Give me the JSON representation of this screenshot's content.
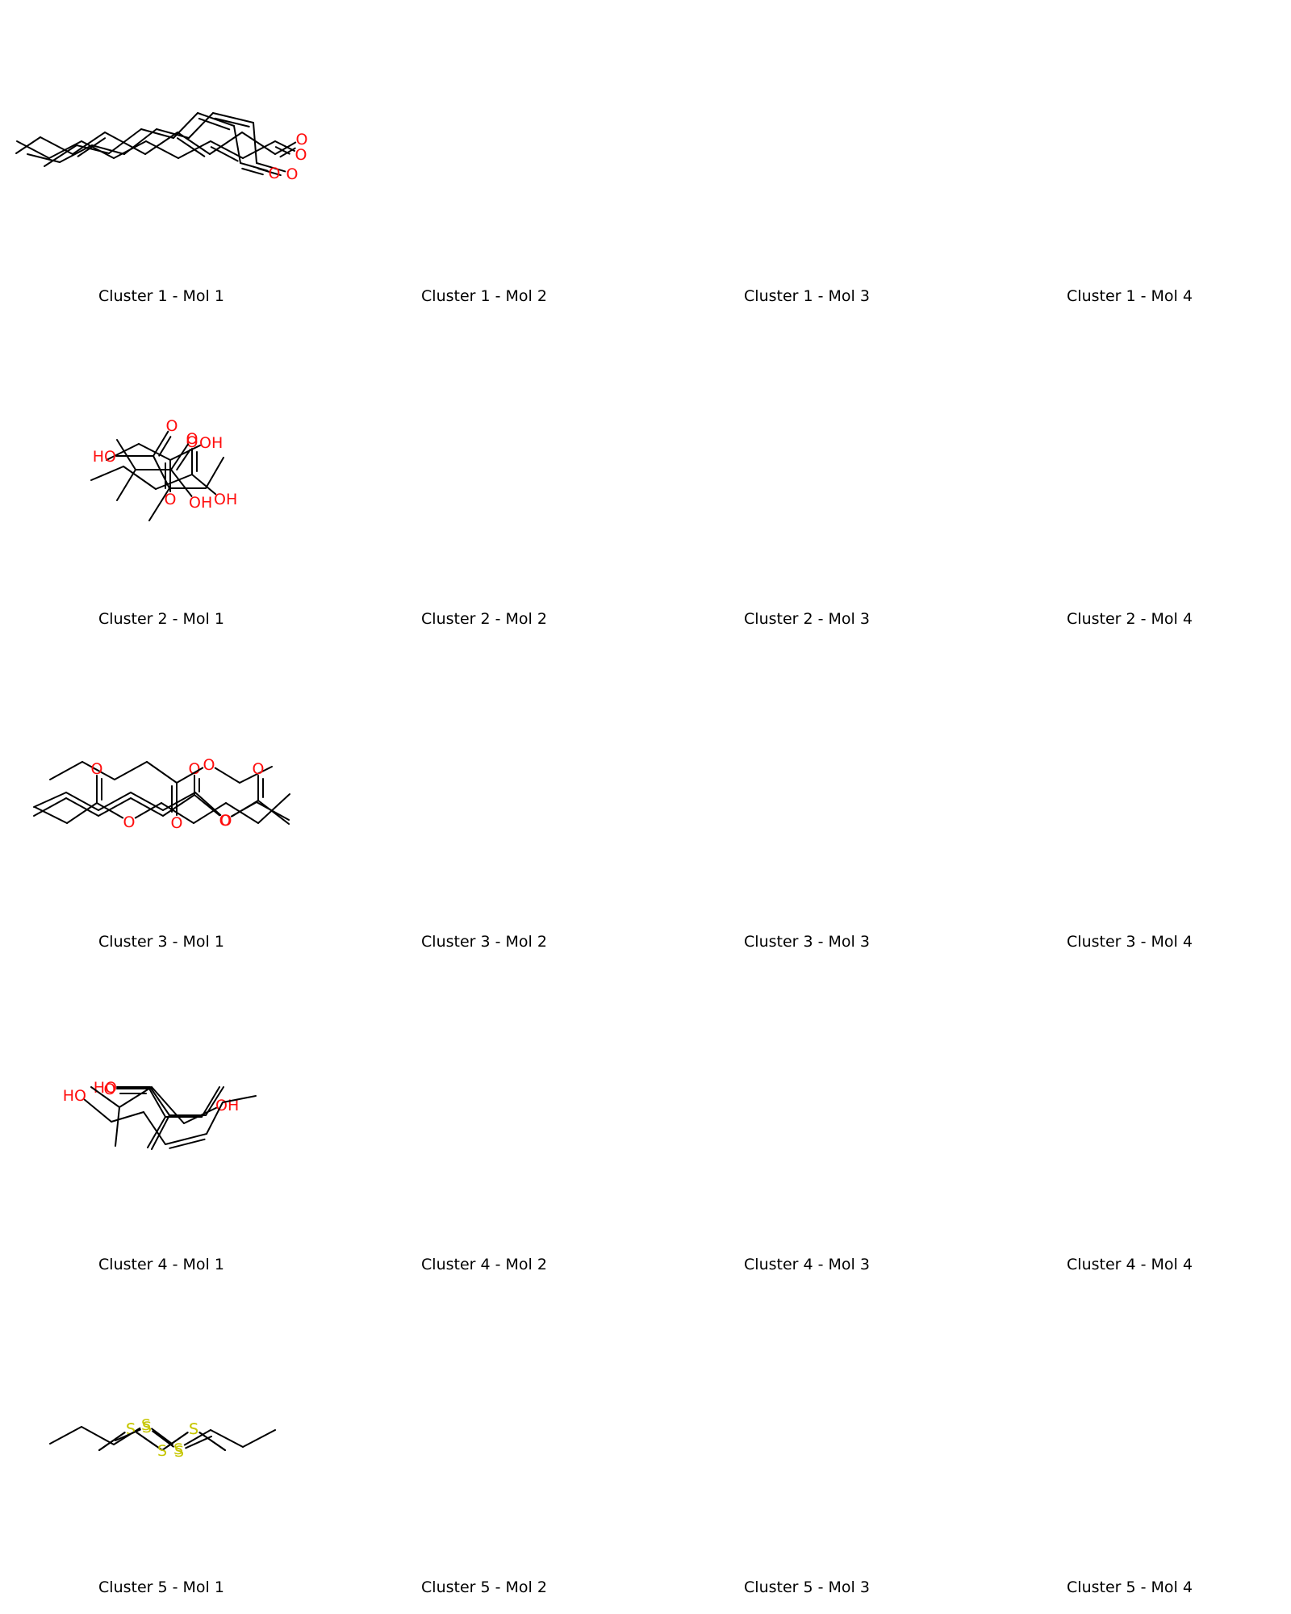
{
  "colors": {
    "carbon": "#000000",
    "O": "#ff0d0d",
    "S": "#c6c600",
    "background": "#ffffff"
  },
  "molecules": [
    {
      "label": "Cluster 1 - Mol 1",
      "atoms": [
        [
          "C",
          21,
          175
        ],
        [
          "C",
          61,
          196
        ],
        [
          "C",
          101,
          175
        ],
        [
          "C",
          141,
          196
        ],
        [
          "C",
          181,
          175
        ],
        [
          "C",
          221,
          196
        ],
        [
          "C",
          261,
          175
        ],
        [
          "C",
          301,
          196
        ],
        [
          "C",
          341,
          175
        ],
        [
          "O",
          373,
          191
        ]
      ],
      "bonds": [
        [
          0,
          1,
          1
        ],
        [
          1,
          2,
          1
        ],
        [
          2,
          3,
          1
        ],
        [
          3,
          4,
          1
        ],
        [
          4,
          5,
          1
        ],
        [
          5,
          6,
          1
        ],
        [
          6,
          7,
          2
        ],
        [
          7,
          8,
          1
        ],
        [
          8,
          9,
          2
        ]
      ]
    },
    {
      "label": "Cluster 1 - Mol 2",
      "atoms": [
        [
          "C",
          34,
          191
        ],
        [
          "C",
          74,
          201
        ],
        [
          "C",
          114,
          180
        ],
        [
          "C",
          154,
          191
        ],
        [
          "C",
          194,
          160
        ],
        [
          "C",
          234,
          171
        ],
        [
          "C",
          264,
          140
        ],
        [
          "C",
          314,
          152
        ],
        [
          "C",
          318,
          202
        ],
        [
          "O",
          362,
          215
        ]
      ],
      "bonds": [
        [
          0,
          1,
          1
        ],
        [
          1,
          2,
          1
        ],
        [
          2,
          3,
          1
        ],
        [
          3,
          4,
          1
        ],
        [
          4,
          5,
          1
        ],
        [
          5,
          6,
          1
        ],
        [
          6,
          7,
          2
        ],
        [
          7,
          8,
          1
        ],
        [
          8,
          9,
          2
        ]
      ]
    },
    {
      "label": "Cluster 1 - Mol 3",
      "atoms": [
        [
          "C",
          55,
          206
        ],
        [
          "C",
          95,
          180
        ],
        [
          "C",
          135,
          190
        ],
        [
          "C",
          175,
          160
        ],
        [
          "C",
          215,
          171
        ],
        [
          "C",
          245,
          140
        ],
        [
          "C",
          290,
          156
        ],
        [
          "C",
          298,
          202
        ],
        [
          "O",
          340,
          214
        ]
      ],
      "bonds": [
        [
          0,
          1,
          1
        ],
        [
          1,
          2,
          1
        ],
        [
          2,
          3,
          1
        ],
        [
          3,
          4,
          1
        ],
        [
          4,
          5,
          1
        ],
        [
          5,
          6,
          2
        ],
        [
          6,
          7,
          1
        ],
        [
          7,
          8,
          2
        ]
      ]
    },
    {
      "label": "Cluster 1 - Mol 4",
      "atoms": [
        [
          "C",
          20,
          190
        ],
        [
          "C",
          50,
          170
        ],
        [
          "C",
          90,
          191
        ],
        [
          "C",
          130,
          164
        ],
        [
          "C",
          180,
          191
        ],
        [
          "C",
          220,
          164
        ],
        [
          "C",
          260,
          191
        ],
        [
          "C",
          300,
          164
        ],
        [
          "C",
          341,
          191
        ],
        [
          "O",
          374,
          172
        ]
      ],
      "bonds": [
        [
          0,
          1,
          1
        ],
        [
          1,
          2,
          1
        ],
        [
          2,
          3,
          2
        ],
        [
          3,
          4,
          1
        ],
        [
          4,
          5,
          1
        ],
        [
          5,
          6,
          2
        ],
        [
          6,
          7,
          1
        ],
        [
          7,
          8,
          1
        ],
        [
          8,
          9,
          2
        ]
      ]
    },
    {
      "label": "Cluster 2 - Mol 1",
      "atoms": [
        [
          "C",
          132,
          570
        ],
        [
          "C",
          172,
          550
        ],
        [
          "C",
          211,
          570
        ],
        [
          "O",
          211,
          618
        ],
        [
          "O",
          256,
          548
        ]
      ],
      "bonds": [
        [
          0,
          1,
          1
        ],
        [
          1,
          2,
          1
        ],
        [
          2,
          3,
          2
        ],
        [
          2,
          4,
          1
        ]
      ]
    },
    {
      "label": "Cluster 2 - Mol 2",
      "atoms": [
        [
          "C",
          113,
          595
        ],
        [
          "C",
          153,
          578
        ],
        [
          "C",
          193,
          606
        ],
        [
          "C",
          238,
          588
        ],
        [
          "O",
          238,
          547
        ],
        [
          "O",
          274,
          618
        ]
      ],
      "bonds": [
        [
          0,
          1,
          1
        ],
        [
          1,
          2,
          1
        ],
        [
          2,
          3,
          1
        ],
        [
          3,
          4,
          2
        ],
        [
          3,
          5,
          1
        ]
      ]
    },
    {
      "label": "Cluster 2 - Mol 3",
      "atoms": [
        [
          "C",
          145,
          545
        ],
        [
          "C",
          168,
          582
        ],
        [
          "C",
          145,
          620
        ],
        [
          "C",
          212,
          582
        ],
        [
          "O",
          238,
          543
        ],
        [
          "O",
          243,
          622
        ]
      ],
      "bonds": [
        [
          0,
          1,
          1
        ],
        [
          1,
          2,
          1
        ],
        [
          1,
          3,
          1
        ],
        [
          3,
          4,
          2
        ],
        [
          3,
          5,
          1
        ]
      ]
    },
    {
      "label": "Cluster 2 - Mol 4",
      "atoms": [
        [
          "O",
          135,
          565
        ],
        [
          "C",
          190,
          565
        ],
        [
          "O",
          213,
          527
        ],
        [
          "C",
          210,
          605
        ],
        [
          "C",
          255,
          605
        ],
        [
          "C",
          277,
          567
        ],
        [
          "C",
          185,
          645
        ]
      ],
      "bonds": [
        [
          0,
          1,
          1
        ],
        [
          1,
          2,
          2
        ],
        [
          1,
          3,
          1
        ],
        [
          3,
          4,
          1
        ],
        [
          4,
          5,
          1
        ],
        [
          3,
          6,
          1
        ]
      ]
    },
    {
      "label": "Cluster 3 - Mol 1",
      "atoms": [
        [
          "C",
          42,
          1011
        ],
        [
          "C",
          82,
          989
        ],
        [
          "C",
          122,
          1011
        ],
        [
          "C",
          162,
          989
        ],
        [
          "C",
          202,
          1011
        ],
        [
          "C",
          241,
          985
        ],
        [
          "O",
          241,
          952
        ],
        [
          "O",
          279,
          1016
        ],
        [
          "C",
          318,
          994
        ],
        [
          "C",
          358,
          1016
        ]
      ],
      "bonds": [
        [
          0,
          1,
          1
        ],
        [
          1,
          2,
          1
        ],
        [
          2,
          3,
          1
        ],
        [
          3,
          4,
          1
        ],
        [
          4,
          5,
          1
        ],
        [
          5,
          6,
          2
        ],
        [
          5,
          7,
          1
        ],
        [
          7,
          8,
          1
        ],
        [
          8,
          9,
          1
        ]
      ]
    },
    {
      "label": "Cluster 3 - Mol 2",
      "atoms": [
        [
          "C",
          62,
          966
        ],
        [
          "C",
          102,
          944
        ],
        [
          "C",
          142,
          966
        ],
        [
          "C",
          182,
          944
        ],
        [
          "C",
          219,
          970
        ],
        [
          "O",
          219,
          1019
        ],
        [
          "O",
          259,
          947
        ],
        [
          "C",
          297,
          970
        ],
        [
          "C",
          337,
          950
        ]
      ],
      "bonds": [
        [
          0,
          1,
          1
        ],
        [
          1,
          2,
          1
        ],
        [
          2,
          3,
          1
        ],
        [
          3,
          4,
          1
        ],
        [
          4,
          5,
          2
        ],
        [
          4,
          6,
          1
        ],
        [
          6,
          7,
          1
        ],
        [
          7,
          8,
          1
        ]
      ]
    },
    {
      "label": "Cluster 3 - Mol 3",
      "atoms": [
        [
          "C",
          43,
          1000
        ],
        [
          "C",
          83,
          1020
        ],
        [
          "C",
          120,
          995
        ],
        [
          "O",
          120,
          952
        ],
        [
          "O",
          160,
          1018
        ],
        [
          "C",
          200,
          995
        ],
        [
          "C",
          240,
          1020
        ],
        [
          "C",
          280,
          995
        ],
        [
          "C",
          320,
          1020
        ],
        [
          "C",
          359,
          984
        ]
      ],
      "bonds": [
        [
          0,
          1,
          1
        ],
        [
          1,
          2,
          1
        ],
        [
          2,
          3,
          2
        ],
        [
          2,
          4,
          1
        ],
        [
          4,
          5,
          1
        ],
        [
          5,
          6,
          1
        ],
        [
          6,
          7,
          1
        ],
        [
          7,
          8,
          1
        ],
        [
          8,
          9,
          1
        ]
      ]
    },
    {
      "label": "Cluster 3 - Mol 4",
      "atoms": [
        [
          "C",
          42,
          1000
        ],
        [
          "C",
          82,
          982
        ],
        [
          "C",
          122,
          1004
        ],
        [
          "C",
          162,
          982
        ],
        [
          "C",
          202,
          1004
        ],
        [
          "C",
          242,
          982
        ],
        [
          "O",
          280,
          1016
        ],
        [
          "C",
          320,
          992
        ],
        [
          "O",
          320,
          952
        ],
        [
          "C",
          358,
          1021
        ]
      ],
      "bonds": [
        [
          0,
          1,
          1
        ],
        [
          1,
          2,
          1
        ],
        [
          2,
          3,
          1
        ],
        [
          3,
          4,
          1
        ],
        [
          4,
          5,
          1
        ],
        [
          5,
          6,
          1
        ],
        [
          6,
          7,
          1
        ],
        [
          7,
          8,
          2
        ],
        [
          7,
          9,
          1
        ]
      ]
    },
    {
      "label": "Cluster 4 - Mol 1",
      "atoms": [
        [
          "O",
          136,
          1347
        ],
        [
          "C",
          186,
          1347
        ],
        [
          "C",
          210,
          1382
        ],
        [
          "C",
          255,
          1382
        ],
        [
          "C",
          277,
          1347
        ],
        [
          "C",
          188,
          1424
        ]
      ],
      "bonds": [
        [
          0,
          1,
          1
        ],
        [
          1,
          2,
          1
        ],
        [
          2,
          3,
          1
        ],
        [
          3,
          4,
          1
        ],
        [
          2,
          5,
          1
        ]
      ]
    },
    {
      "label": "Cluster 4 - Mol 2",
      "atoms": [
        [
          "C",
          113,
          1347
        ],
        [
          "C",
          148,
          1372
        ],
        [
          "C",
          143,
          1420
        ],
        [
          "C",
          188,
          1347
        ],
        [
          "C",
          228,
          1392
        ],
        [
          "O",
          276,
          1369
        ]
      ],
      "bonds": [
        [
          0,
          1,
          1
        ],
        [
          1,
          2,
          1
        ],
        [
          1,
          3,
          1
        ],
        [
          3,
          4,
          1
        ],
        [
          4,
          5,
          1
        ]
      ]
    },
    {
      "label": "Cluster 4 - Mol 3",
      "atoms": [
        [
          "O",
          136,
          1349
        ],
        [
          "C",
          185,
          1349
        ],
        [
          "C",
          205,
          1384
        ],
        [
          "C",
          250,
          1384
        ],
        [
          "C",
          272,
          1347
        ],
        [
          "C",
          183,
          1422
        ]
      ],
      "bonds": [
        [
          0,
          1,
          2
        ],
        [
          1,
          2,
          1
        ],
        [
          2,
          3,
          1
        ],
        [
          3,
          4,
          1
        ],
        [
          2,
          5,
          1
        ]
      ]
    },
    {
      "label": "Cluster 4 - Mol 4",
      "atoms": [
        [
          "O",
          98,
          1357
        ],
        [
          "C",
          138,
          1390
        ],
        [
          "C",
          178,
          1378
        ],
        [
          "C",
          205,
          1418
        ],
        [
          "C",
          256,
          1405
        ],
        [
          "C",
          276,
          1366
        ],
        [
          "C",
          317,
          1358
        ]
      ],
      "bonds": [
        [
          0,
          1,
          1
        ],
        [
          1,
          2,
          1
        ],
        [
          2,
          3,
          1
        ],
        [
          3,
          4,
          2
        ],
        [
          4,
          5,
          1
        ],
        [
          5,
          6,
          1
        ]
      ]
    },
    {
      "label": "Cluster 5 - Mol 1",
      "atoms": [
        [
          "C",
          62,
          1789
        ],
        [
          "C",
          101,
          1768
        ],
        [
          "C",
          141,
          1790
        ],
        [
          "S",
          181,
          1765
        ],
        [
          "S",
          221,
          1795
        ],
        [
          "C",
          261,
          1772
        ],
        [
          "C",
          301,
          1793
        ],
        [
          "C",
          341,
          1772
        ]
      ],
      "bonds": [
        [
          0,
          1,
          1
        ],
        [
          1,
          2,
          1
        ],
        [
          2,
          3,
          1
        ],
        [
          3,
          4,
          1
        ],
        [
          4,
          5,
          1
        ],
        [
          5,
          6,
          1
        ],
        [
          6,
          7,
          1
        ]
      ]
    },
    {
      "label": "Cluster 5 - Mol 2",
      "atoms": [
        [
          "C",
          123,
          1797
        ],
        [
          "S",
          162,
          1770
        ],
        [
          "C",
          201,
          1797
        ],
        [
          "S",
          240,
          1770
        ],
        [
          "C",
          279,
          1797
        ]
      ],
      "bonds": [
        [
          0,
          1,
          1
        ],
        [
          1,
          2,
          1
        ],
        [
          2,
          3,
          1
        ],
        [
          3,
          4,
          1
        ]
      ]
    },
    {
      "label": "Cluster 5 - Mol 3",
      "atoms": [
        [
          "C",
          123,
          1797
        ],
        [
          "S",
          162,
          1770
        ],
        [
          "S",
          201,
          1797
        ],
        [
          "S",
          240,
          1770
        ],
        [
          "C",
          279,
          1797
        ]
      ],
      "bonds": [
        [
          0,
          1,
          1
        ],
        [
          1,
          2,
          1
        ],
        [
          2,
          3,
          1
        ],
        [
          3,
          4,
          1
        ]
      ]
    },
    {
      "label": "Cluster 5 - Mol 4",
      "atoms": [
        [
          "C",
          143,
          1785
        ],
        [
          "S",
          182,
          1768
        ],
        [
          "S",
          222,
          1798
        ],
        [
          "C",
          262,
          1780
        ]
      ],
      "bonds": [
        [
          0,
          1,
          1
        ],
        [
          1,
          2,
          1
        ],
        [
          2,
          3,
          1
        ]
      ]
    }
  ]
}
